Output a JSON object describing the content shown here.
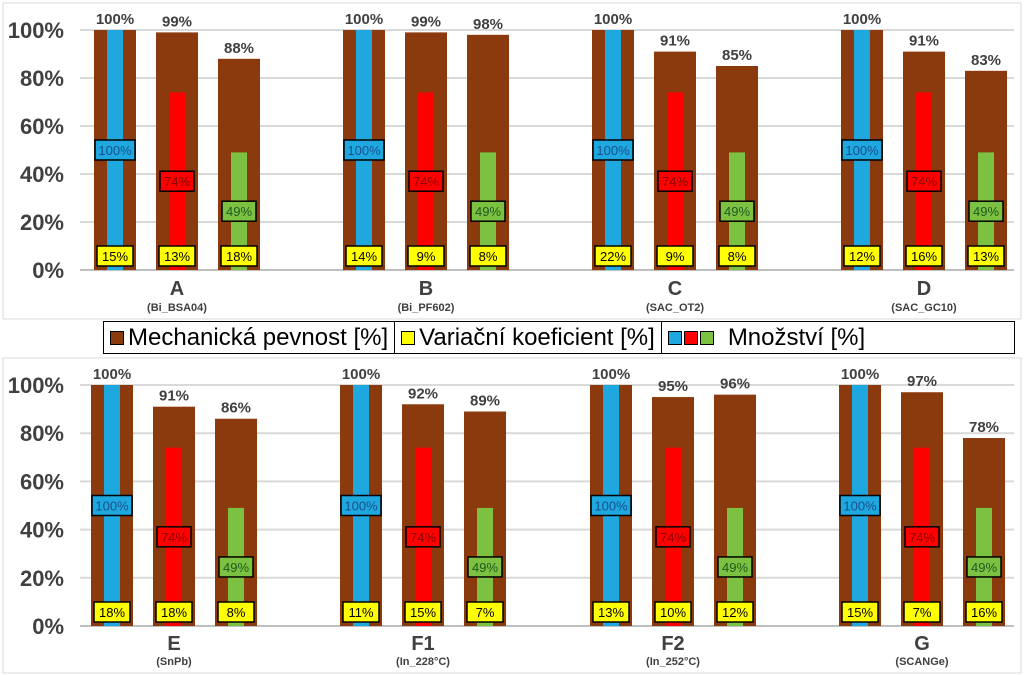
{
  "legend": {
    "strength": {
      "label": "Mechanická pevnost [%]",
      "color": "#8B3A0E"
    },
    "variation": {
      "label": "Variační koeficient [%]",
      "color": "#FFFF00"
    },
    "amount": {
      "label": "Množství [%]",
      "colors": [
        "#1FA8E0",
        "#FF0000",
        "#7CC142"
      ]
    }
  },
  "chart_data": [
    {
      "type": "bar",
      "ylim": [
        0,
        100
      ],
      "yticks": [
        "0%",
        "20%",
        "40%",
        "60%",
        "80%",
        "100%"
      ],
      "grid": true,
      "groups": [
        {
          "label": "A",
          "sublabel": "(Bi_BSA04)",
          "strength": [
            100,
            99,
            88
          ],
          "amount": [
            100,
            74,
            49
          ],
          "variation": [
            15,
            13,
            18
          ]
        },
        {
          "label": "B",
          "sublabel": "(Bi_PF602)",
          "strength": [
            100,
            99,
            98
          ],
          "amount": [
            100,
            74,
            49
          ],
          "variation": [
            14,
            9,
            8
          ]
        },
        {
          "label": "C",
          "sublabel": "(SAC_OT2)",
          "strength": [
            100,
            91,
            85
          ],
          "amount": [
            100,
            74,
            49
          ],
          "variation": [
            22,
            9,
            8
          ]
        },
        {
          "label": "D",
          "sublabel": "(SAC_GC10)",
          "strength": [
            100,
            91,
            83
          ],
          "amount": [
            100,
            74,
            49
          ],
          "variation": [
            12,
            16,
            13
          ]
        }
      ]
    },
    {
      "type": "bar",
      "ylim": [
        0,
        100
      ],
      "yticks": [
        "0%",
        "20%",
        "40%",
        "60%",
        "80%",
        "100%"
      ],
      "grid": true,
      "groups": [
        {
          "label": "E",
          "sublabel": "(SnPb)",
          "strength": [
            100,
            91,
            86
          ],
          "amount": [
            100,
            74,
            49
          ],
          "variation": [
            18,
            18,
            8
          ]
        },
        {
          "label": "F1",
          "sublabel": "(In_228°C)",
          "strength": [
            100,
            92,
            89
          ],
          "amount": [
            100,
            74,
            49
          ],
          "variation": [
            11,
            15,
            7
          ]
        },
        {
          "label": "F2",
          "sublabel": "(In_252°C)",
          "strength": [
            100,
            95,
            96
          ],
          "amount": [
            100,
            74,
            49
          ],
          "variation": [
            13,
            10,
            12
          ]
        },
        {
          "label": "G",
          "sublabel": "(SCANGe)",
          "strength": [
            100,
            97,
            78
          ],
          "amount": [
            100,
            74,
            49
          ],
          "variation": [
            15,
            7,
            16
          ]
        }
      ]
    }
  ]
}
